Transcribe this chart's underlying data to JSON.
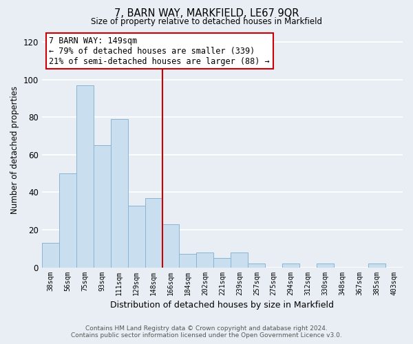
{
  "title": "7, BARN WAY, MARKFIELD, LE67 9QR",
  "subtitle": "Size of property relative to detached houses in Markfield",
  "xlabel": "Distribution of detached houses by size in Markfield",
  "ylabel": "Number of detached properties",
  "bar_labels": [
    "38sqm",
    "56sqm",
    "75sqm",
    "93sqm",
    "111sqm",
    "129sqm",
    "148sqm",
    "166sqm",
    "184sqm",
    "202sqm",
    "221sqm",
    "239sqm",
    "257sqm",
    "275sqm",
    "294sqm",
    "312sqm",
    "330sqm",
    "348sqm",
    "367sqm",
    "385sqm",
    "403sqm"
  ],
  "bar_heights": [
    13,
    50,
    97,
    65,
    79,
    33,
    37,
    23,
    7,
    8,
    5,
    8,
    2,
    0,
    2,
    0,
    2,
    0,
    0,
    2,
    0
  ],
  "bar_color": "#c9dff0",
  "bar_edge_color": "#8ab4d4",
  "vline_x_index": 6,
  "vline_color": "#cc0000",
  "ylim": [
    0,
    125
  ],
  "yticks": [
    0,
    20,
    40,
    60,
    80,
    100,
    120
  ],
  "annotation_line1": "7 BARN WAY: 149sqm",
  "annotation_line2": "← 79% of detached houses are smaller (339)",
  "annotation_line3": "21% of semi-detached houses are larger (88) →",
  "annotation_box_color": "#ffffff",
  "annotation_box_edge_color": "#cc0000",
  "footer_line1": "Contains HM Land Registry data © Crown copyright and database right 2024.",
  "footer_line2": "Contains public sector information licensed under the Open Government Licence v3.0.",
  "background_color": "#e8eef4",
  "grid_color": "#ffffff"
}
